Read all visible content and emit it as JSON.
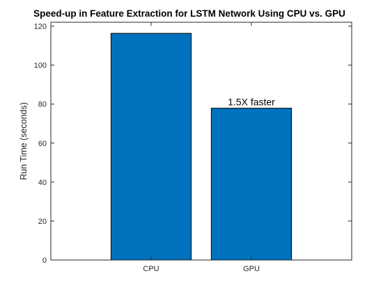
{
  "chart_data": {
    "type": "bar",
    "title": "Speed-up in Feature Extraction for LSTM Network Using CPU vs. GPU",
    "xlabel": "",
    "ylabel": "Run Time (seconds)",
    "categories": [
      "CPU",
      "GPU"
    ],
    "values": [
      116.3,
      77.9
    ],
    "ylim": [
      0,
      122
    ],
    "yticks": [
      0,
      20,
      40,
      60,
      80,
      100,
      120
    ],
    "bar_color": "#0072BD",
    "grid": false,
    "box": true,
    "annotations": [
      {
        "text": "1.5X faster",
        "category": "GPU",
        "value": 77.9
      }
    ]
  }
}
